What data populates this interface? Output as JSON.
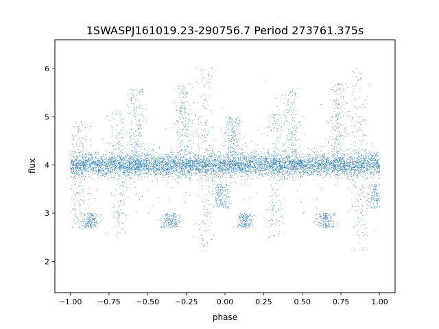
{
  "chart_data": {
    "type": "scatter",
    "title": "1SWASPJ161019.23-290756.7 Period 273761.375s",
    "xlabel": "phase",
    "ylabel": "flux",
    "xlim": [
      -1.1,
      1.1
    ],
    "ylim": [
      1.35,
      6.6
    ],
    "x_ticks": [
      -1.0,
      -0.75,
      -0.5,
      -0.25,
      0.0,
      0.25,
      0.5,
      0.75,
      1.0
    ],
    "x_tick_labels": [
      "−1.00",
      "−0.75",
      "−0.50",
      "−0.25",
      "0.00",
      "0.25",
      "0.50",
      "0.75",
      "1.00"
    ],
    "y_ticks": [
      2,
      3,
      4,
      5,
      6
    ],
    "y_tick_labels": [
      "2",
      "3",
      "4",
      "5",
      "6"
    ],
    "grid": false,
    "legend": "none",
    "marker_color": "#1f77b4",
    "series": [
      {
        "x_range": [
          -1.0,
          1.0
        ],
        "baseline": 4.0,
        "baseline_scatter": 0.12,
        "points_estimated": 9000,
        "features": [
          {
            "phase": -0.95,
            "flux_low": 2.6,
            "flux_high": 4.9
          },
          {
            "phase": -0.87,
            "flux_low": 2.7,
            "flux_high": 3.0
          },
          {
            "phase": -0.68,
            "flux_low": 2.5,
            "flux_high": 5.1
          },
          {
            "phase": -0.57,
            "flux_low": 3.9,
            "flux_high": 5.6
          },
          {
            "phase": -0.35,
            "flux_low": 2.7,
            "flux_high": 3.0
          },
          {
            "phase": -0.27,
            "flux_low": 4.2,
            "flux_high": 5.7
          },
          {
            "phase": -0.13,
            "flux_low": 2.2,
            "flux_high": 6.0
          },
          {
            "phase": -0.03,
            "flux_low": 3.1,
            "flux_high": 3.6
          },
          {
            "phase": 0.05,
            "flux_low": 4.2,
            "flux_high": 5.0
          },
          {
            "phase": 0.13,
            "flux_low": 2.7,
            "flux_high": 3.0
          },
          {
            "phase": 0.32,
            "flux_low": 2.5,
            "flux_high": 5.1
          },
          {
            "phase": 0.43,
            "flux_low": 3.9,
            "flux_high": 5.6
          },
          {
            "phase": 0.65,
            "flux_low": 2.7,
            "flux_high": 3.0
          },
          {
            "phase": 0.73,
            "flux_low": 4.2,
            "flux_high": 5.7
          },
          {
            "phase": 0.87,
            "flux_low": 2.2,
            "flux_high": 6.0
          },
          {
            "phase": 0.97,
            "flux_low": 3.1,
            "flux_high": 3.6
          }
        ]
      }
    ]
  }
}
